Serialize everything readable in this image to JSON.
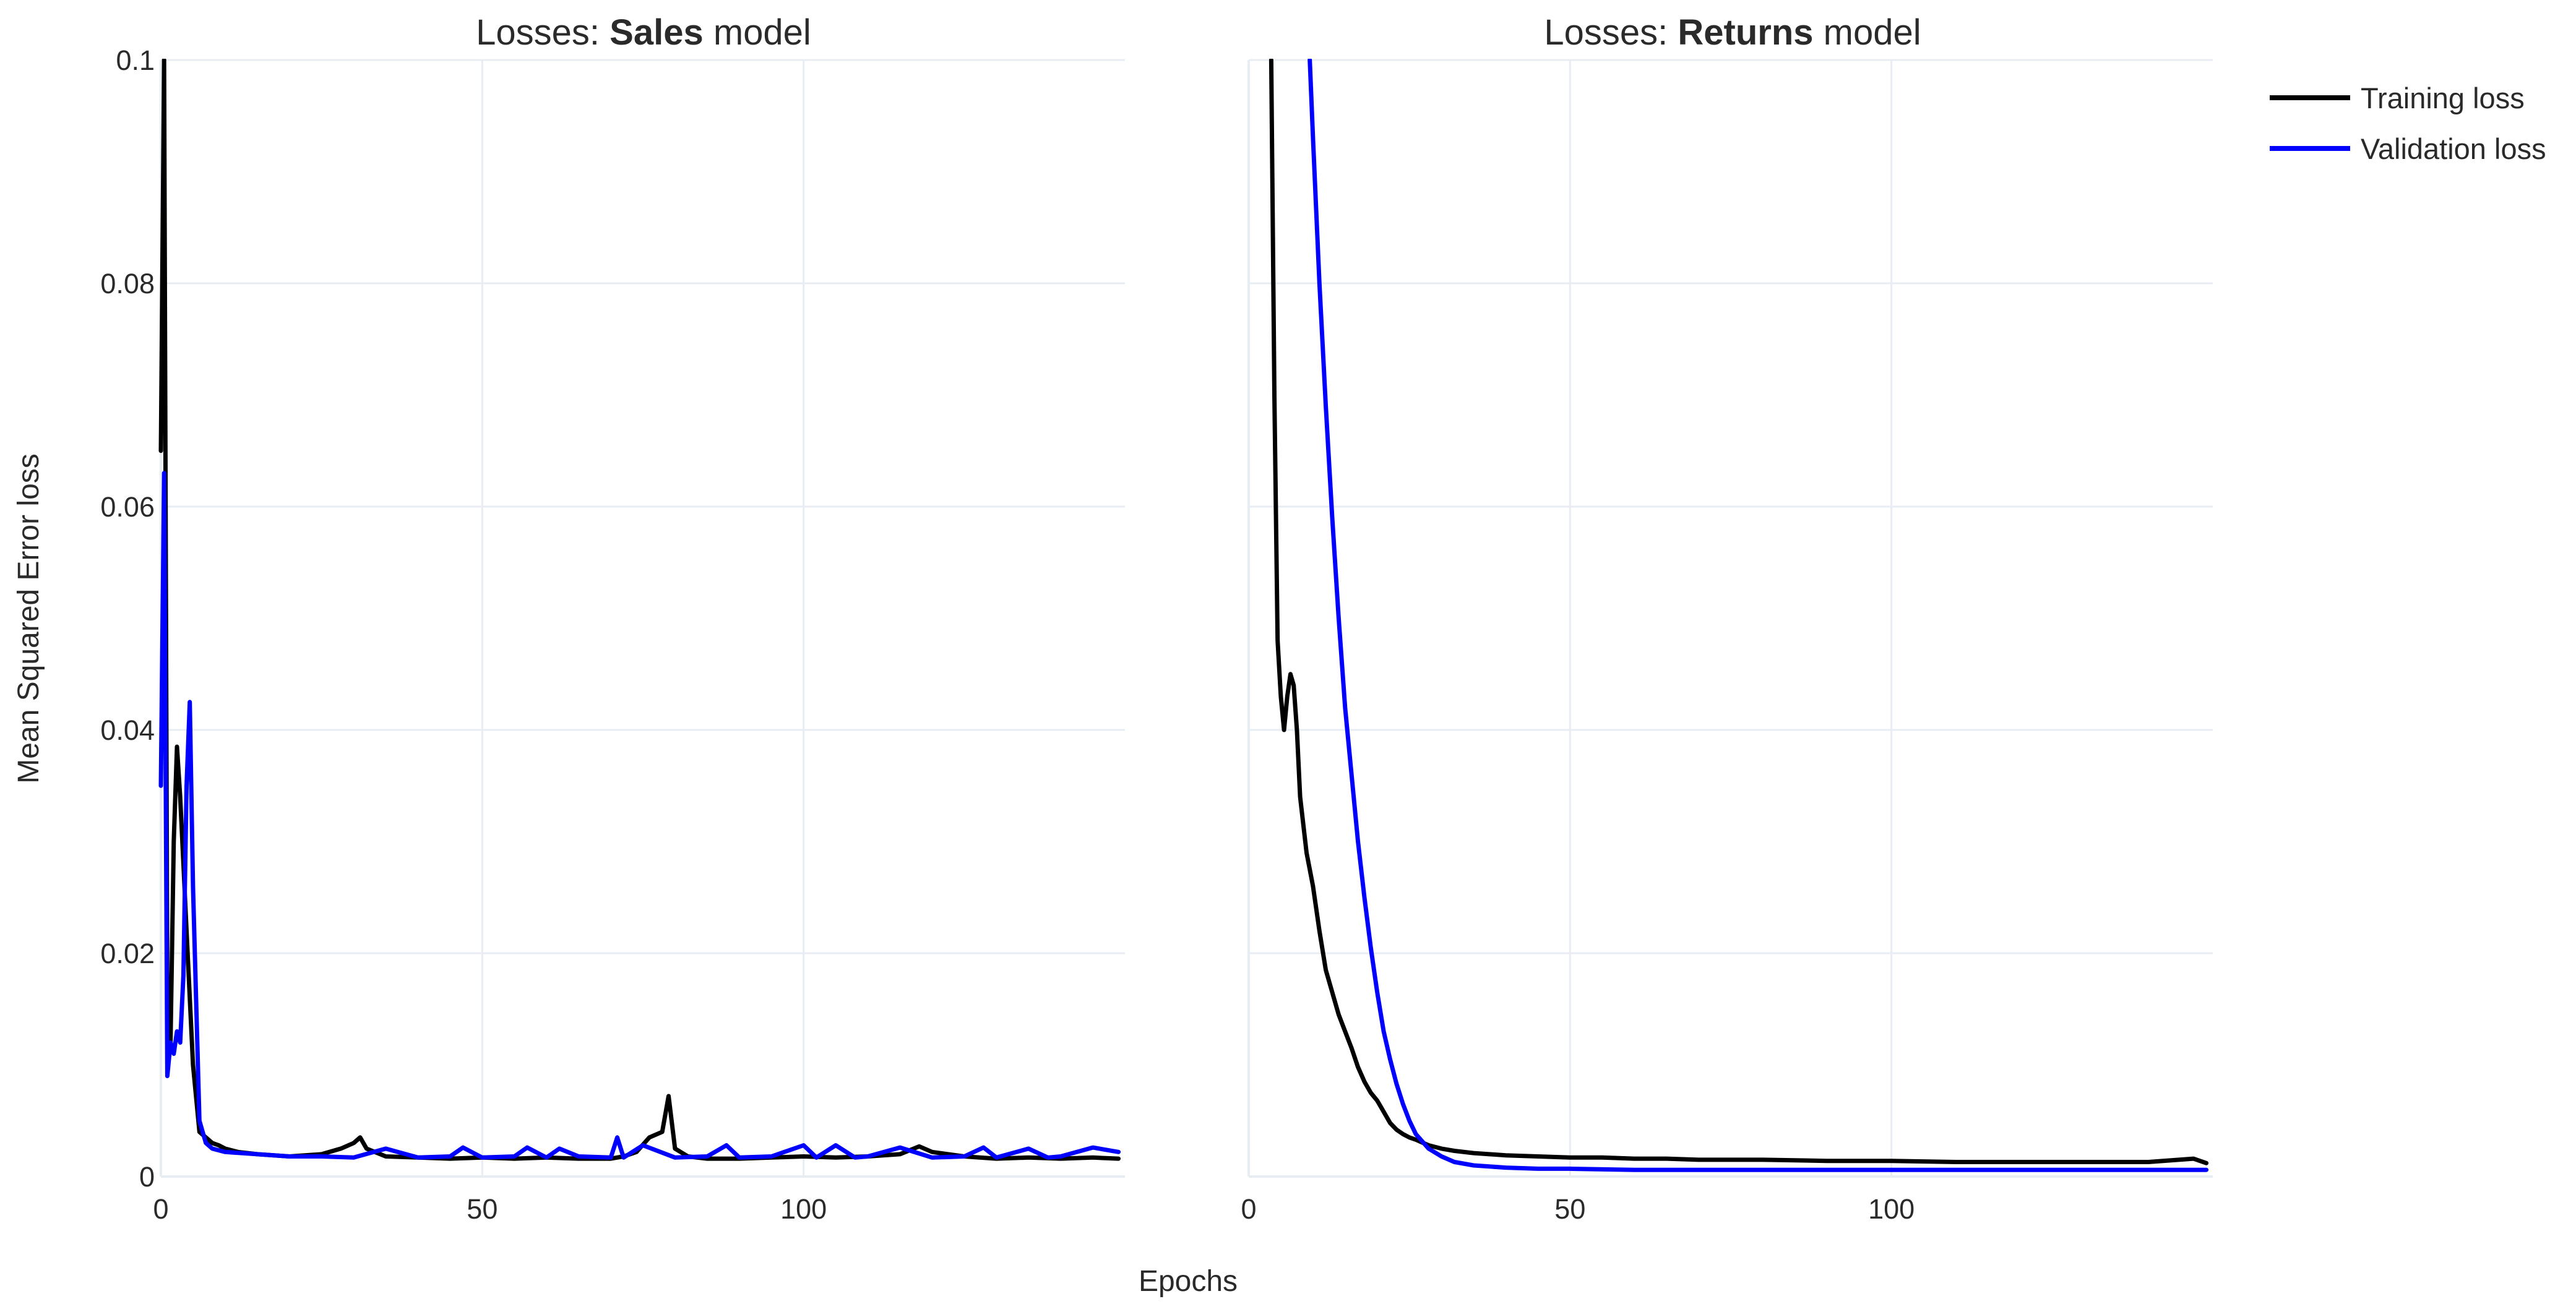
{
  "chart_data": {
    "type": "line",
    "xlabel": "Epochs",
    "ylabel": "Mean Squared Error loss",
    "legend_position": "top-right",
    "grid": true,
    "y_shared": true,
    "colors": {
      "Training loss": "#000000",
      "Validation loss": "#0000ff"
    },
    "legend": [
      "Training loss",
      "Validation loss"
    ],
    "subplots": [
      {
        "title_prefix": "Losses: ",
        "title_bold": "Sales",
        "title_suffix": " model",
        "xlim": [
          0,
          150
        ],
        "ylim": [
          0,
          0.1
        ],
        "x_ticks": [
          0,
          50,
          100
        ],
        "y_ticks": [
          0,
          0.02,
          0.04,
          0.06,
          0.08,
          0.1
        ],
        "y_tick_labels": [
          "0",
          "0.02",
          "0.04",
          "0.06",
          "0.08",
          "0.1"
        ],
        "series": [
          {
            "name": "Training loss",
            "x": [
              0,
              0.5,
              1,
              1.5,
              2,
              2.5,
              3,
              3.5,
              4,
              5,
              6,
              7,
              8,
              9,
              10,
              12,
              15,
              20,
              25,
              28,
              30,
              31,
              32,
              35,
              40,
              45,
              50,
              55,
              60,
              65,
              70,
              72,
              74,
              76,
              78,
              79,
              80,
              82,
              85,
              90,
              95,
              100,
              105,
              110,
              115,
              118,
              120,
              125,
              130,
              135,
              140,
              145,
              149
            ],
            "y": [
              0.065,
              0.1,
              0.016,
              0.012,
              0.03,
              0.0385,
              0.034,
              0.028,
              0.022,
              0.01,
              0.004,
              0.0035,
              0.003,
              0.0028,
              0.0025,
              0.0022,
              0.002,
              0.0018,
              0.002,
              0.0025,
              0.003,
              0.0035,
              0.0025,
              0.0018,
              0.0017,
              0.0016,
              0.0017,
              0.0016,
              0.0017,
              0.0016,
              0.0016,
              0.0018,
              0.0022,
              0.0035,
              0.004,
              0.0072,
              0.0025,
              0.0018,
              0.0016,
              0.0016,
              0.0017,
              0.0018,
              0.0017,
              0.0018,
              0.002,
              0.0027,
              0.0022,
              0.0018,
              0.0016,
              0.0017,
              0.0016,
              0.0017,
              0.0016
            ]
          },
          {
            "name": "Validation loss",
            "x": [
              0,
              0.5,
              1,
              1.5,
              2,
              2.5,
              3,
              3.5,
              4,
              4.5,
              5,
              6,
              7,
              8,
              10,
              15,
              20,
              25,
              30,
              35,
              40,
              45,
              47,
              50,
              55,
              57,
              60,
              62,
              65,
              70,
              71,
              72,
              75,
              80,
              85,
              88,
              90,
              95,
              100,
              102,
              105,
              108,
              110,
              115,
              120,
              125,
              128,
              130,
              135,
              138,
              140,
              145,
              149
            ],
            "y": [
              0.035,
              0.063,
              0.009,
              0.012,
              0.011,
              0.013,
              0.012,
              0.018,
              0.035,
              0.0425,
              0.026,
              0.005,
              0.003,
              0.0025,
              0.0022,
              0.002,
              0.0018,
              0.0018,
              0.0017,
              0.0025,
              0.0017,
              0.0018,
              0.0026,
              0.0017,
              0.0018,
              0.0026,
              0.0017,
              0.0025,
              0.0018,
              0.0017,
              0.0035,
              0.0017,
              0.0028,
              0.0017,
              0.0018,
              0.0028,
              0.0017,
              0.0018,
              0.0028,
              0.0017,
              0.0028,
              0.0017,
              0.0018,
              0.0026,
              0.0017,
              0.0018,
              0.0026,
              0.0017,
              0.0025,
              0.0017,
              0.0018,
              0.0026,
              0.0022
            ]
          }
        ]
      },
      {
        "title_prefix": "Losses: ",
        "title_bold": "Returns",
        "title_suffix": " model",
        "xlim": [
          0,
          150
        ],
        "ylim": [
          0,
          0.1
        ],
        "x_ticks": [
          0,
          50,
          100
        ],
        "y_ticks": [
          0,
          0.02,
          0.04,
          0.06,
          0.08,
          0.1
        ],
        "y_tick_labels": [],
        "series": [
          {
            "name": "Training loss",
            "x": [
              3.5,
              4,
              4.5,
              5,
              5.5,
              6,
              6.5,
              7,
              7.5,
              8,
              9,
              10,
              11,
              12,
              13,
              14,
              15,
              16,
              17,
              18,
              19,
              20,
              21,
              22,
              23,
              24,
              25,
              26,
              28,
              30,
              32,
              35,
              40,
              45,
              50,
              55,
              60,
              65,
              70,
              80,
              90,
              100,
              110,
              120,
              130,
              140,
              147,
              149
            ],
            "y": [
              0.1,
              0.07,
              0.048,
              0.043,
              0.04,
              0.043,
              0.045,
              0.044,
              0.04,
              0.034,
              0.029,
              0.026,
              0.022,
              0.0185,
              0.0165,
              0.0145,
              0.013,
              0.0115,
              0.0098,
              0.0085,
              0.0075,
              0.0068,
              0.0058,
              0.0048,
              0.0042,
              0.0038,
              0.0035,
              0.0033,
              0.0028,
              0.0025,
              0.0023,
              0.0021,
              0.0019,
              0.0018,
              0.0017,
              0.0017,
              0.0016,
              0.0016,
              0.0015,
              0.0015,
              0.0014,
              0.0014,
              0.0013,
              0.0013,
              0.0013,
              0.0013,
              0.0016,
              0.0012
            ]
          },
          {
            "name": "Validation loss",
            "x": [
              9.5,
              10,
              11,
              12,
              13,
              14,
              15,
              16,
              17,
              18,
              19,
              20,
              21,
              22,
              23,
              24,
              25,
              26,
              28,
              30,
              32,
              35,
              40,
              45,
              50,
              60,
              70,
              80,
              90,
              100,
              110,
              120,
              130,
              140,
              149
            ],
            "y": [
              0.1,
              0.093,
              0.08,
              0.069,
              0.059,
              0.05,
              0.042,
              0.036,
              0.03,
              0.025,
              0.0205,
              0.0165,
              0.013,
              0.0105,
              0.0083,
              0.0065,
              0.005,
              0.0038,
              0.0025,
              0.0018,
              0.0013,
              0.001,
              0.0008,
              0.0007,
              0.0007,
              0.0006,
              0.0006,
              0.0006,
              0.0006,
              0.0006,
              0.0006,
              0.0006,
              0.0006,
              0.0006,
              0.0006
            ]
          }
        ]
      }
    ]
  }
}
